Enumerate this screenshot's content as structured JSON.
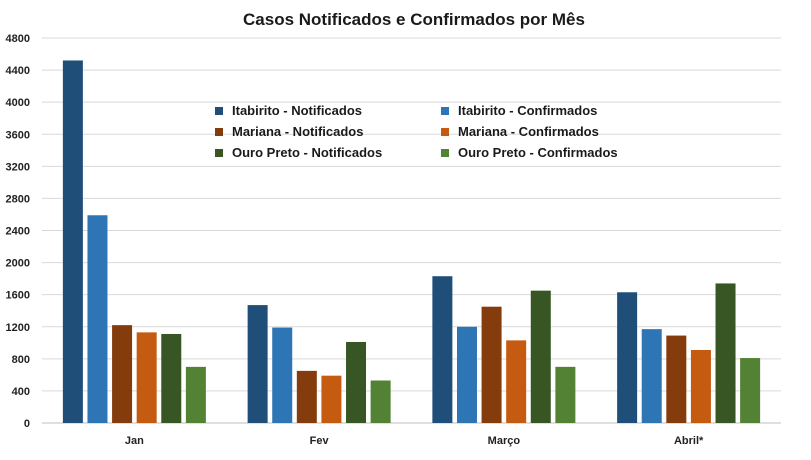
{
  "chart_data": {
    "type": "bar",
    "title": "Casos Notificados e Confirmados por Mês",
    "categories": [
      "Jan",
      "Fev",
      "Março",
      "Abril*"
    ],
    "ylim": [
      0,
      4800
    ],
    "yticks": [
      0,
      400,
      800,
      1200,
      1600,
      2000,
      2400,
      2800,
      3200,
      3600,
      4000,
      4400,
      4800
    ],
    "grid": true,
    "legend_position": "top-center",
    "series": [
      {
        "name": "Itabirito - Notificados",
        "color": "#1f4e79",
        "values": [
          4520,
          1470,
          1830,
          1630
        ]
      },
      {
        "name": "Itabirito - Confirmados",
        "color": "#2e75b6",
        "values": [
          2590,
          1190,
          1200,
          1170
        ]
      },
      {
        "name": "Mariana - Notificados",
        "color": "#843c0c",
        "values": [
          1220,
          650,
          1450,
          1090
        ]
      },
      {
        "name": "Mariana - Confirmados",
        "color": "#c55a11",
        "values": [
          1130,
          590,
          1030,
          910
        ]
      },
      {
        "name": "Ouro Preto - Notificados",
        "color": "#375623",
        "values": [
          1110,
          1010,
          1650,
          1740
        ]
      },
      {
        "name": "Ouro Preto - Confirmados",
        "color": "#548235",
        "values": [
          700,
          530,
          700,
          810
        ]
      }
    ]
  }
}
